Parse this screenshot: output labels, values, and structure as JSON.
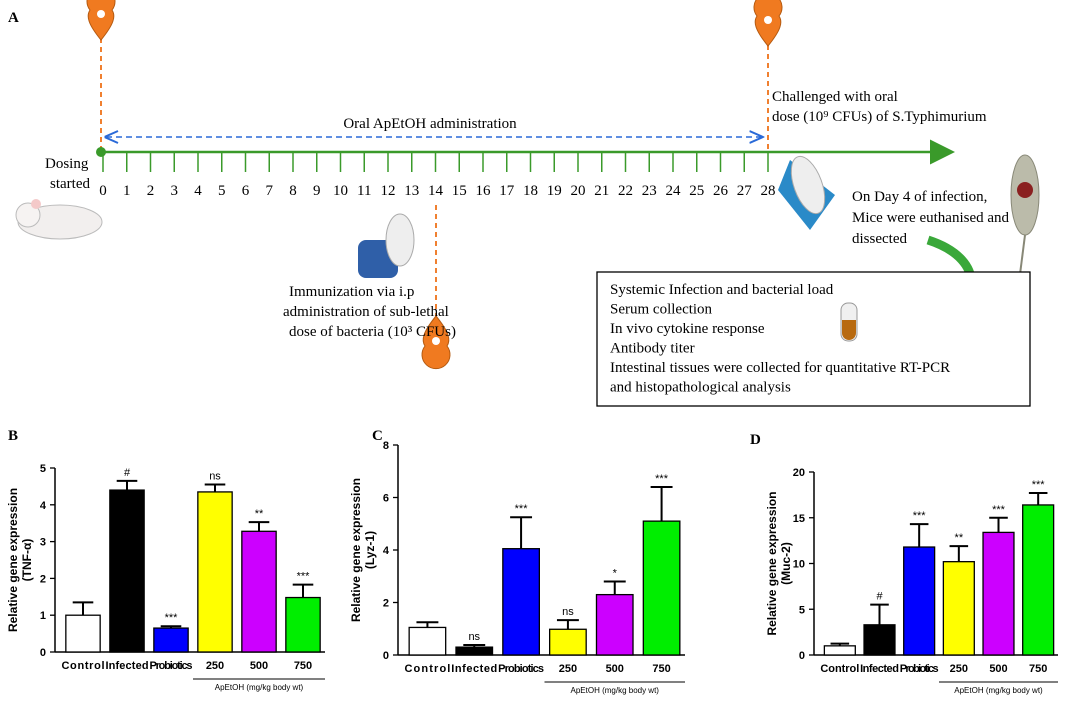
{
  "diagram": {
    "panel_label": "A",
    "admin_label": "Oral ApEtOH administration",
    "start_lines": [
      "Dosing",
      "started"
    ],
    "days": [
      0,
      1,
      2,
      3,
      4,
      5,
      6,
      7,
      8,
      9,
      10,
      11,
      12,
      13,
      14,
      15,
      16,
      17,
      18,
      19,
      20,
      21,
      22,
      23,
      24,
      25,
      26,
      27,
      28
    ],
    "challenge_lines": [
      "Challenged with oral",
      "dose (10⁹ CFUs) of S.Typhimurium"
    ],
    "end_lines": [
      "On Day 4 of infection,",
      "Mice were euthanised and",
      "dissected"
    ],
    "immunization_lines": [
      "Immunization via i.p",
      "administration of sub-lethal",
      "dose of bacteria (10³ CFUs)"
    ],
    "box_lines": [
      "Systemic Infection and bacterial load",
      "Serum collection",
      "In vivo cytokine response",
      "Antibody titer",
      "Intestinal tissues were collected for quantitative RT-PCR",
      "and histopathological analysis"
    ]
  },
  "chart_data": [
    {
      "type": "bar",
      "panel_label": "B",
      "ylabel": [
        "Relative gene expression",
        "(TNF-α)"
      ],
      "categories": [
        "Control",
        "Infected",
        "Probiotics",
        "250",
        "500",
        "750"
      ],
      "values": [
        1.0,
        4.4,
        0.65,
        4.35,
        3.28,
        1.48
      ],
      "errors": [
        0.35,
        0.25,
        0.05,
        0.2,
        0.25,
        0.35
      ],
      "annotations": [
        null,
        "#",
        "***",
        "ns",
        "**",
        "***"
      ],
      "colors": [
        "#ffffff",
        "#000000",
        "#0000ff",
        "#ffff00",
        "#cc00ff",
        "#00ee00"
      ],
      "group_label": "ApEtOH (mg/kg body wt)",
      "ylim": [
        0,
        5
      ],
      "yticks": [
        0,
        1,
        2,
        3,
        4,
        5
      ]
    },
    {
      "type": "bar",
      "panel_label": "C",
      "ylabel": [
        "Relative gene expression",
        "(Lyz-1)"
      ],
      "categories": [
        "Control",
        "Infected",
        "Probiotics",
        "250",
        "500",
        "750"
      ],
      "values": [
        1.05,
        0.3,
        4.05,
        0.98,
        2.3,
        5.1
      ],
      "errors": [
        0.2,
        0.08,
        1.2,
        0.35,
        0.5,
        1.3
      ],
      "annotations": [
        null,
        "ns",
        "***",
        "ns",
        "*",
        "***"
      ],
      "colors": [
        "#ffffff",
        "#000000",
        "#0000ff",
        "#ffff00",
        "#cc00ff",
        "#00ee00"
      ],
      "group_label": "ApEtOH (mg/kg body wt)",
      "ylim": [
        0,
        8
      ],
      "yticks": [
        0,
        2,
        4,
        6,
        8
      ]
    },
    {
      "type": "bar",
      "panel_label": "D",
      "ylabel": [
        "Relative gene expression",
        "(Muc-2)"
      ],
      "categories": [
        "Control",
        "Infected",
        "Probiotics",
        "250",
        "500",
        "750"
      ],
      "values": [
        1.0,
        3.3,
        11.8,
        10.2,
        13.4,
        16.4
      ],
      "errors": [
        0.25,
        2.2,
        2.5,
        1.7,
        1.6,
        1.3
      ],
      "annotations": [
        null,
        "#",
        "***",
        "**",
        "***",
        "***"
      ],
      "colors": [
        "#ffffff",
        "#000000",
        "#0000ff",
        "#ffff00",
        "#cc00ff",
        "#00ee00"
      ],
      "group_label": "ApEtOH (mg/kg body wt)",
      "ylim": [
        0,
        20
      ],
      "yticks": [
        0,
        5,
        10,
        15,
        20
      ]
    }
  ]
}
